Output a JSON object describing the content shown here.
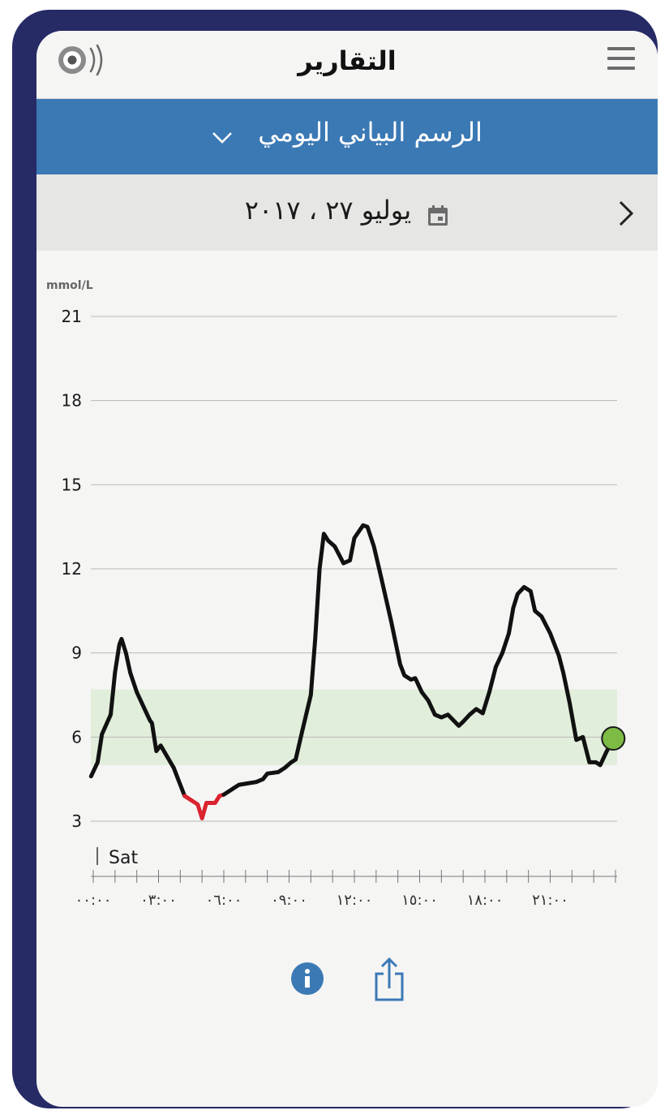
{
  "header": {
    "title": "التقارير",
    "sensor_icon": "sensor-signal-icon",
    "menu_icon": "hamburger-menu-icon"
  },
  "report_selector": {
    "label": "الرسم البياني اليومي",
    "icon": "chevron-down-icon"
  },
  "date_bar": {
    "date": "يوليو ٢٧ ، ٢٠١٧",
    "calendar_icon": "calendar-icon",
    "next_icon": "chevron-right-icon"
  },
  "chart_data": {
    "type": "line",
    "unit_label": "mmol/L",
    "yticks": [
      3,
      6,
      9,
      12,
      15,
      18,
      21
    ],
    "ylim": [
      3,
      21
    ],
    "xlim": [
      0,
      24
    ],
    "day_label": "Sat",
    "xtick_labels": [
      "٠٠:٠٠",
      "٠٣:٠٠",
      "٠٦:٠٠",
      "٠٩:٠٠",
      "١٢:٠٠",
      "١٥:٠٠",
      "١٨:٠٠",
      "٢١:٠٠"
    ],
    "xtick_hours": [
      0,
      3,
      6,
      9,
      12,
      15,
      18,
      21
    ],
    "target_range": [
      5.0,
      7.7
    ],
    "low_threshold": 3.9,
    "colors": {
      "line": "#111111",
      "low": "#d9232e",
      "target_band": "#e1eedb",
      "current_point": "#7dbb45",
      "grid": "#b8b8b8"
    },
    "series": [
      {
        "values": [
          [
            -0.1,
            4.6
          ],
          [
            0.2,
            5.1
          ],
          [
            0.4,
            6.1
          ],
          [
            0.8,
            6.8
          ],
          [
            1.0,
            8.3
          ],
          [
            1.2,
            9.3
          ],
          [
            1.3,
            9.5
          ],
          [
            1.5,
            9.0
          ],
          [
            1.7,
            8.3
          ],
          [
            2.0,
            7.6
          ],
          [
            2.3,
            7.1
          ],
          [
            2.6,
            6.6
          ],
          [
            2.7,
            6.5
          ],
          [
            2.9,
            5.5
          ],
          [
            3.1,
            5.7
          ],
          [
            3.4,
            5.3
          ],
          [
            3.7,
            4.9
          ],
          [
            4.0,
            4.3
          ],
          [
            4.2,
            3.9
          ],
          [
            4.4,
            3.8
          ],
          [
            4.8,
            3.6
          ],
          [
            5.0,
            3.1
          ],
          [
            5.2,
            3.65
          ],
          [
            5.6,
            3.65
          ],
          [
            5.8,
            3.9
          ],
          [
            6.0,
            3.95
          ],
          [
            6.3,
            4.1
          ],
          [
            6.5,
            4.2
          ],
          [
            6.7,
            4.3
          ],
          [
            7.1,
            4.35
          ],
          [
            7.5,
            4.4
          ],
          [
            7.8,
            4.5
          ],
          [
            8.0,
            4.7
          ],
          [
            8.5,
            4.75
          ],
          [
            8.8,
            4.9
          ],
          [
            9.1,
            5.1
          ],
          [
            9.3,
            5.2
          ],
          [
            9.6,
            6.2
          ],
          [
            10.0,
            7.5
          ],
          [
            10.2,
            9.5
          ],
          [
            10.4,
            12.0
          ],
          [
            10.6,
            13.25
          ],
          [
            10.8,
            13.0
          ],
          [
            11.1,
            12.8
          ],
          [
            11.5,
            12.2
          ],
          [
            11.8,
            12.3
          ],
          [
            12.0,
            13.1
          ],
          [
            12.4,
            13.55
          ],
          [
            12.6,
            13.5
          ],
          [
            12.9,
            12.8
          ],
          [
            13.2,
            11.8
          ],
          [
            13.7,
            10.1
          ],
          [
            14.1,
            8.6
          ],
          [
            14.3,
            8.2
          ],
          [
            14.6,
            8.05
          ],
          [
            14.8,
            8.1
          ],
          [
            15.1,
            7.6
          ],
          [
            15.4,
            7.3
          ],
          [
            15.7,
            6.8
          ],
          [
            16.0,
            6.7
          ],
          [
            16.3,
            6.8
          ],
          [
            16.8,
            6.4
          ],
          [
            17.0,
            6.55
          ],
          [
            17.3,
            6.8
          ],
          [
            17.6,
            7.0
          ],
          [
            17.9,
            6.85
          ],
          [
            18.2,
            7.6
          ],
          [
            18.5,
            8.5
          ],
          [
            18.8,
            9.0
          ],
          [
            19.1,
            9.7
          ],
          [
            19.3,
            10.6
          ],
          [
            19.5,
            11.1
          ],
          [
            19.8,
            11.35
          ],
          [
            20.1,
            11.2
          ],
          [
            20.3,
            10.5
          ],
          [
            20.6,
            10.3
          ],
          [
            21.0,
            9.7
          ],
          [
            21.4,
            8.9
          ],
          [
            21.6,
            8.3
          ],
          [
            21.9,
            7.2
          ],
          [
            22.2,
            5.9
          ],
          [
            22.5,
            6.0
          ],
          [
            22.8,
            5.1
          ],
          [
            23.1,
            5.1
          ],
          [
            23.3,
            5.0
          ],
          [
            23.6,
            5.5
          ],
          [
            23.9,
            5.95
          ]
        ]
      }
    ]
  },
  "actions": {
    "info_icon": "info-icon",
    "share_icon": "share-icon"
  }
}
